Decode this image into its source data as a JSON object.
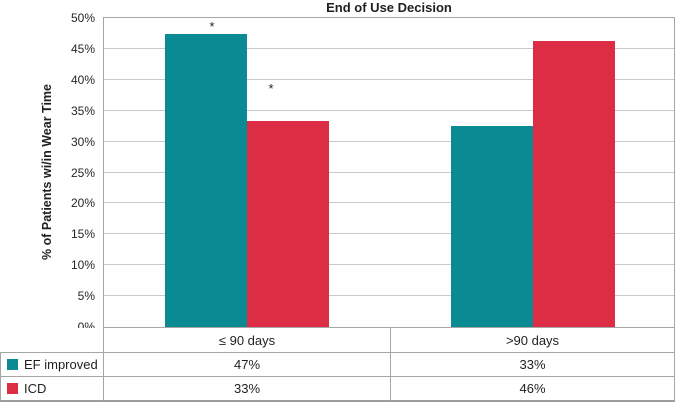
{
  "title": "End of Use Decision",
  "chart_data": {
    "type": "bar",
    "title": "End of Use Decision",
    "xlabel": "",
    "ylabel": "% of Patients wi/in Wear Time",
    "categories": [
      "≤ 90 days",
      ">90 days"
    ],
    "series": [
      {
        "name": "EF improved",
        "color": "#0a8b94",
        "values": [
          47,
          33
        ],
        "visual_values": [
          47.4,
          32.6
        ],
        "annotations": [
          "*",
          ""
        ]
      },
      {
        "name": "ICD",
        "color": "#dc2d45",
        "values": [
          33,
          46
        ],
        "visual_values": [
          33.4,
          46.3
        ],
        "annotations": [
          "*",
          ""
        ]
      }
    ],
    "ylim": [
      0,
      50
    ],
    "ytick_step": 5,
    "ytick_format": "percent",
    "grid": true,
    "legend_position": "table-left",
    "annotation_note": "*"
  },
  "table": {
    "category_headers": [
      "≤ 90 days",
      ">90 days"
    ],
    "rows": [
      {
        "label": "EF improved",
        "swatch_color": "#0a8b94",
        "values": [
          "47%",
          "33%"
        ]
      },
      {
        "label": "ICD",
        "swatch_color": "#dc2d45",
        "values": [
          "33%",
          "46%"
        ]
      }
    ]
  }
}
